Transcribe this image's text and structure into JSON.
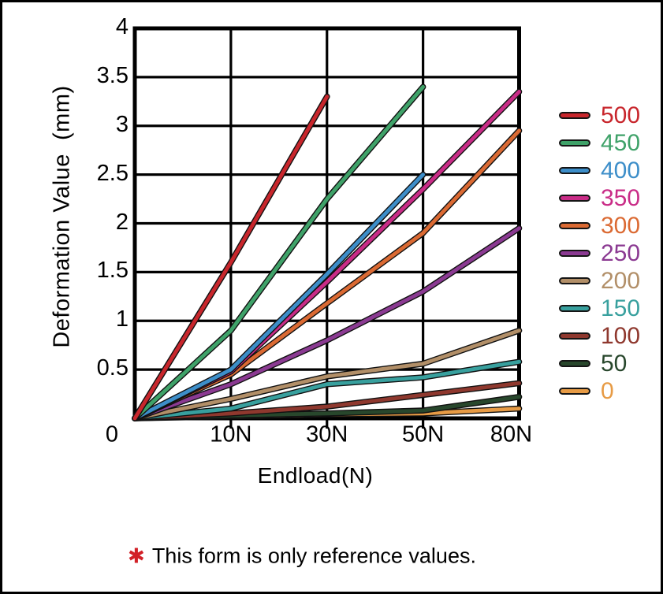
{
  "chart_data": {
    "type": "line",
    "title": "",
    "xlabel": "Endload(N)",
    "ylabel": "Deformation Value  (mm)",
    "x_categories": [
      "0",
      "10N",
      "30N",
      "50N",
      "80N"
    ],
    "y_ticks": [
      "4",
      "3.5",
      "3",
      "2.5",
      "2",
      "1.5",
      "1",
      "0.5"
    ],
    "ylim": [
      0,
      4
    ],
    "grid": true,
    "legend_position": "right",
    "series": [
      {
        "name": "500",
        "color": "#C8262C",
        "values": [
          0,
          1.6,
          3.3,
          null,
          null
        ]
      },
      {
        "name": "450",
        "color": "#3FA269",
        "values": [
          0,
          0.9,
          2.25,
          3.4,
          null
        ]
      },
      {
        "name": "400",
        "color": "#3D8EC9",
        "values": [
          0,
          0.5,
          1.48,
          2.5,
          null
        ]
      },
      {
        "name": "350",
        "color": "#C92C87",
        "values": [
          0,
          0.48,
          1.4,
          2.35,
          3.35
        ]
      },
      {
        "name": "300",
        "color": "#DB6A33",
        "values": [
          0,
          0.45,
          1.18,
          1.9,
          2.95
        ]
      },
      {
        "name": "250",
        "color": "#8B3A92",
        "values": [
          0,
          0.35,
          0.8,
          1.3,
          1.95
        ]
      },
      {
        "name": "200",
        "color": "#B28F68",
        "values": [
          0,
          0.2,
          0.43,
          0.56,
          0.9
        ]
      },
      {
        "name": "150",
        "color": "#38A09E",
        "values": [
          0,
          0.1,
          0.35,
          0.42,
          0.58
        ]
      },
      {
        "name": "100",
        "color": "#8F382E",
        "values": [
          0,
          0.05,
          0.12,
          0.24,
          0.36
        ]
      },
      {
        "name": "50",
        "color": "#28472C",
        "values": [
          0,
          0.03,
          0.05,
          0.08,
          0.22
        ]
      },
      {
        "name": "0",
        "color": "#E79B45",
        "values": [
          0,
          0.02,
          0.04,
          0.05,
          0.1
        ]
      }
    ]
  },
  "note": {
    "asterisk": "✱",
    "text": "This form is only reference values."
  },
  "colors": {
    "background": "#FFFFFF",
    "border": "#000000",
    "grid": "#000000",
    "line_outline": "#111111",
    "note_asterisk": "#D22027"
  }
}
